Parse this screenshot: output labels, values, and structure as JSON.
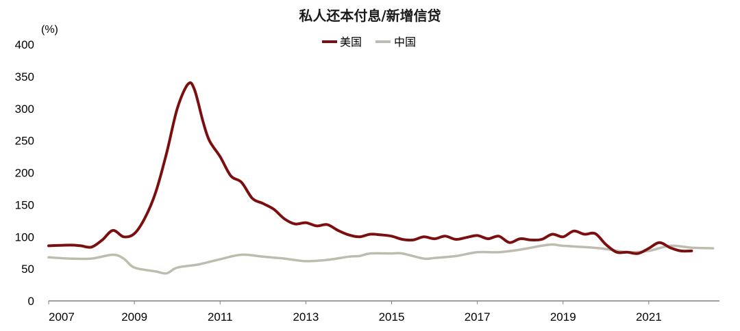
{
  "chart_data": {
    "type": "line",
    "title": "私人还本付息/新增信贷",
    "ylabel": "(%)",
    "xlabel": "",
    "ylim": [
      0,
      400
    ],
    "yticks": [
      "0",
      "50",
      "100",
      "150",
      "200",
      "250",
      "300",
      "350",
      "400"
    ],
    "xlim": [
      2007,
      2023
    ],
    "xticks": [
      "2007",
      "2009",
      "2011",
      "2013",
      "2015",
      "2017",
      "2019",
      "2021"
    ],
    "grid": false,
    "legend_position": "top-center",
    "series": [
      {
        "name": "美国",
        "color": "#7b0f0f",
        "x": [
          2007.0,
          2007.5,
          2007.75,
          2008.0,
          2008.25,
          2008.5,
          2008.75,
          2009.0,
          2009.25,
          2009.5,
          2009.75,
          2010.0,
          2010.25,
          2010.4,
          2010.6,
          2010.75,
          2011.0,
          2011.25,
          2011.5,
          2011.75,
          2012.0,
          2012.25,
          2012.5,
          2012.75,
          2013.0,
          2013.25,
          2013.5,
          2013.75,
          2014.0,
          2014.25,
          2014.5,
          2014.75,
          2015.0,
          2015.25,
          2015.5,
          2015.75,
          2016.0,
          2016.25,
          2016.5,
          2016.75,
          2017.0,
          2017.25,
          2017.5,
          2017.75,
          2018.0,
          2018.25,
          2018.5,
          2018.75,
          2019.0,
          2019.25,
          2019.5,
          2019.75,
          2020.0,
          2020.25,
          2020.5,
          2020.75,
          2021.0,
          2021.25,
          2021.5,
          2021.75,
          2022.0
        ],
        "y": [
          86,
          87,
          86,
          84,
          95,
          110,
          100,
          105,
          130,
          170,
          230,
          300,
          338,
          330,
          280,
          250,
          225,
          195,
          185,
          160,
          152,
          143,
          128,
          120,
          122,
          117,
          119,
          110,
          103,
          100,
          104,
          103,
          101,
          96,
          95,
          100,
          97,
          101,
          96,
          99,
          102,
          97,
          101,
          91,
          97,
          95,
          96,
          104,
          100,
          109,
          104,
          105,
          88,
          76,
          76,
          74,
          82,
          91,
          83,
          78,
          78
        ]
      },
      {
        "name": "中国",
        "color": "#bdbcae",
        "x": [
          2007.0,
          2007.5,
          2008.0,
          2008.5,
          2008.75,
          2009.0,
          2009.5,
          2009.75,
          2010.0,
          2010.5,
          2011.0,
          2011.5,
          2012.0,
          2012.5,
          2013.0,
          2013.5,
          2014.0,
          2014.25,
          2014.5,
          2015.0,
          2015.25,
          2015.75,
          2016.0,
          2016.5,
          2017.0,
          2017.5,
          2018.0,
          2018.5,
          2018.75,
          2019.0,
          2019.5,
          2020.0,
          2020.5,
          2021.0,
          2021.5,
          2022.0,
          2022.5
        ],
        "y": [
          68,
          66,
          66,
          72,
          66,
          52,
          46,
          43,
          52,
          57,
          65,
          72,
          69,
          66,
          62,
          64,
          69,
          70,
          74,
          74,
          74,
          66,
          67,
          70,
          76,
          76,
          80,
          86,
          88,
          86,
          84,
          81,
          76,
          78,
          86,
          83,
          82
        ]
      }
    ]
  }
}
